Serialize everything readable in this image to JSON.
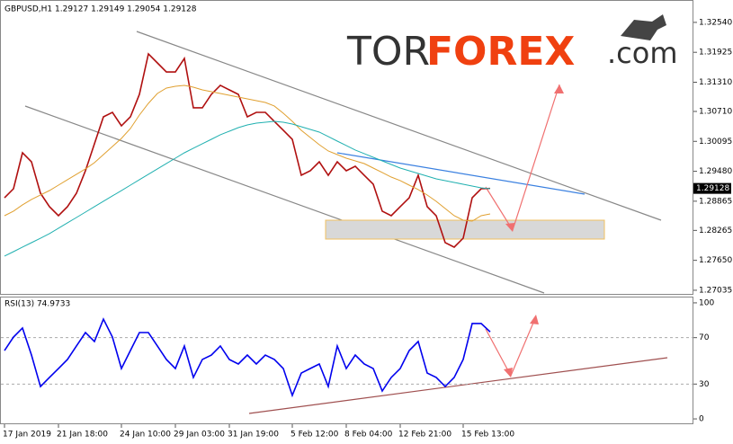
{
  "logo": {
    "part1": "TOR",
    "part2": "FOREX",
    "part3": ".com"
  },
  "chart_data": [
    {
      "type": "line",
      "title": "GBPUSD,H1  1.29127 1.29149 1.29054 1.29128",
      "categories": [
        "17 Jan 2019",
        null,
        null,
        null,
        null,
        null,
        "21 Jan 18:00",
        null,
        null,
        null,
        null,
        null,
        null,
        "24 Jan 10:00",
        null,
        null,
        null,
        null,
        null,
        "29 Jan 03:00",
        null,
        null,
        null,
        null,
        null,
        "31 Jan 19:00",
        null,
        null,
        null,
        null,
        null,
        null,
        "5 Feb 12:00",
        null,
        null,
        null,
        null,
        null,
        "8 Feb 04:00",
        null,
        null,
        null,
        null,
        null,
        "12 Feb 21:00",
        null,
        null,
        null,
        null,
        null,
        null,
        "15 Feb 13:00",
        null,
        null,
        null
      ],
      "series": [
        {
          "color": "#b01010",
          "values": [
            1.28936,
            1.29121,
            1.2986,
            1.29675,
            1.29029,
            1.28752,
            1.28567,
            1.28752,
            1.29029,
            1.29491,
            1.30045,
            1.30599,
            1.30691,
            1.30414,
            1.30599,
            1.31061,
            1.31892,
            1.31707,
            1.31522,
            1.31522,
            1.31799,
            1.30784,
            1.30784,
            1.31061,
            1.31246,
            1.31153,
            1.31061,
            1.30599,
            1.30691,
            1.30691,
            1.30506,
            1.30322,
            1.30137,
            1.29398,
            1.29491,
            1.29675,
            1.29398,
            1.29675,
            1.29491,
            1.29583,
            1.29398,
            1.29214,
            1.2866,
            1.28567,
            1.28752,
            1.28936,
            1.29398,
            1.28752,
            1.28567,
            1.28013,
            1.27921,
            1.28105,
            1.28936,
            1.29121,
            1.29128
          ]
        },
        {
          "color": "#e0a030",
          "values": [
            1.28567,
            1.2866,
            1.28789,
            1.289,
            1.28992,
            1.29084,
            1.29195,
            1.29306,
            1.29417,
            1.29528,
            1.29657,
            1.29823,
            1.29989,
            1.30156,
            1.30359,
            1.30636,
            1.30876,
            1.31079,
            1.3119,
            1.31227,
            1.31245,
            1.31208,
            1.31153,
            1.31116,
            1.31079,
            1.31042,
            1.31005,
            1.30968,
            1.30931,
            1.30894,
            1.30821,
            1.30673,
            1.30507,
            1.30322,
            1.30174,
            1.30026,
            1.29897,
            1.29823,
            1.29749,
            1.29694,
            1.29638,
            1.29546,
            1.29454,
            1.29361,
            1.29288,
            1.29195,
            1.29103,
            1.28992,
            1.28863,
            1.28715,
            1.28567,
            1.28475,
            1.28456,
            1.28567,
            1.28604
          ]
        },
        {
          "color": "#20b0b0",
          "values": [
            1.27736,
            1.27828,
            1.27921,
            1.28013,
            1.28105,
            1.28198,
            1.28309,
            1.2842,
            1.2853,
            1.28641,
            1.28752,
            1.28863,
            1.28974,
            1.29084,
            1.29195,
            1.29306,
            1.29417,
            1.29528,
            1.29639,
            1.29749,
            1.2986,
            1.29953,
            1.30045,
            1.30137,
            1.3023,
            1.30303,
            1.30377,
            1.30433,
            1.3047,
            1.30488,
            1.30507,
            1.30488,
            1.30451,
            1.30396,
            1.3034,
            1.30285,
            1.30193,
            1.301,
            1.30008,
            1.29916,
            1.29842,
            1.29768,
            1.29694,
            1.2962,
            1.29546,
            1.29491,
            1.29435,
            1.2938,
            1.29325,
            1.29288,
            1.29251,
            1.29214,
            1.29177,
            1.2914,
            1.29121
          ]
        }
      ],
      "ylim": [
        1.2696,
        1.33
      ],
      "yticks": [
        {
          "value": 1.3254,
          "label": "1.32540"
        },
        1.31925,
        {
          "value": 1.3131,
          "label": "1.31310"
        },
        {
          "value": 1.3071,
          "label": "1.30710"
        },
        1.30095,
        {
          "value": 1.2948,
          "label": "1.29480"
        },
        1.28865,
        1.28265,
        {
          "value": 1.2765,
          "label": "1.27650"
        },
        1.27035
      ]
    },
    {
      "type": "line",
      "title": "RSI(13) 74.9733",
      "series": [
        {
          "color": "#0000ee",
          "values": [
            58.9,
            70.5,
            78.3,
            55.0,
            27.9,
            35.7,
            43.4,
            51.2,
            62.8,
            74.4,
            66.7,
            86.0,
            70.5,
            43.4,
            58.9,
            74.4,
            74.4,
            62.8,
            51.2,
            43.4,
            62.8,
            35.7,
            51.2,
            55.0,
            62.8,
            51.2,
            47.3,
            55.0,
            47.3,
            55.0,
            51.2,
            43.4,
            20.2,
            39.5,
            43.4,
            47.3,
            27.9,
            62.8,
            43.4,
            55.0,
            47.3,
            43.4,
            24.0,
            35.7,
            43.4,
            58.9,
            66.7,
            39.5,
            35.7,
            27.9,
            35.7,
            51.2,
            82.2,
            82.2,
            74.9733
          ]
        }
      ],
      "ylim": [
        -4.6,
        104.6
      ],
      "yticks": [
        100,
        70,
        30,
        0
      ],
      "grid_ticks": [
        70,
        30
      ]
    }
  ]
}
